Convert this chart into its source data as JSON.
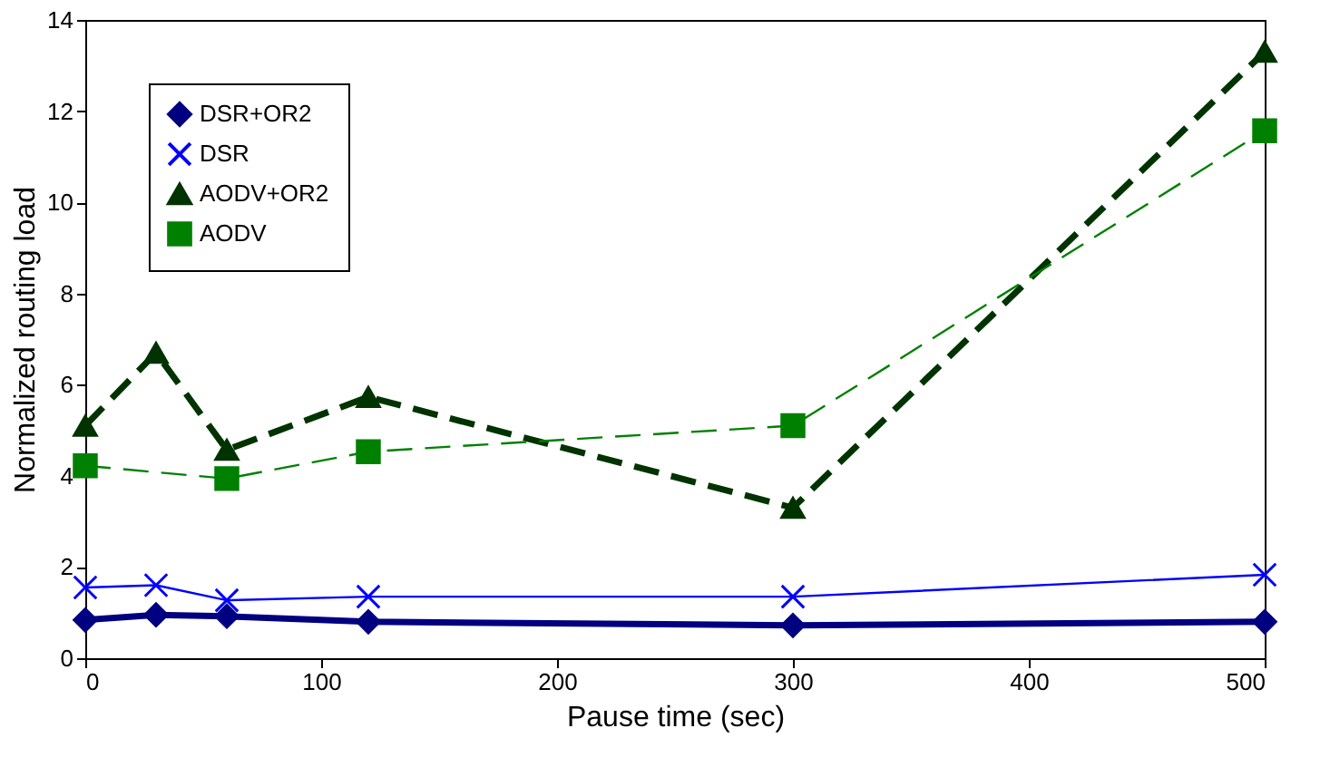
{
  "chart_data": {
    "type": "line",
    "xlabel": "Pause time (sec)",
    "ylabel": "Normalized routing load",
    "xlim": [
      0,
      500
    ],
    "xticks": [
      0,
      100,
      200,
      300,
      400,
      500
    ],
    "ylim": [
      0,
      14
    ],
    "yticks": [
      0,
      2,
      4,
      6,
      8,
      10,
      12,
      14
    ],
    "grid": false,
    "legend": "top left",
    "series": [
      {
        "name": "DSR+OR2",
        "color": "#000080",
        "marker": "diamond",
        "line_style": "solid",
        "x": [
          0,
          30,
          60,
          120,
          300,
          500
        ],
        "values": [
          0.84,
          0.95,
          0.92,
          0.8,
          0.72,
          0.8
        ]
      },
      {
        "name": "DSR",
        "color": "#0000ff",
        "marker": "cross",
        "line_style": "solid",
        "x": [
          0,
          30,
          60,
          120,
          300,
          500
        ],
        "values": [
          1.55,
          1.6,
          1.27,
          1.35,
          1.35,
          1.83
        ]
      },
      {
        "name": "AODV+OR2",
        "color": "#003300",
        "marker": "triangle",
        "line_style": "dashed",
        "x": [
          0,
          30,
          60,
          120,
          300,
          500
        ],
        "values": [
          5.1,
          6.7,
          4.57,
          5.73,
          3.3,
          13.3
        ]
      },
      {
        "name": "AODV",
        "color": "#008000",
        "marker": "square",
        "line_style": "dashed",
        "x": [
          0,
          60,
          120,
          300,
          500
        ],
        "values": [
          4.22,
          3.94,
          4.53,
          5.1,
          11.57
        ]
      }
    ]
  }
}
